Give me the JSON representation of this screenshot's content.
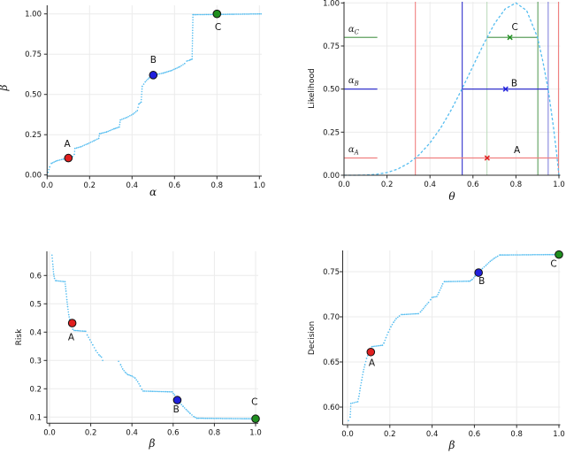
{
  "figure": {
    "background": "#ffffff",
    "colors": {
      "curve": "#55bdf0",
      "marker_red": "#e02020",
      "marker_blue": "#2020dd",
      "marker_green": "#1f8f1f",
      "line_red": "#f08080",
      "line_blue": "#3333cc",
      "line_blue_light": "#8585dd",
      "line_green": "#5ea05e",
      "line_green_pale": "#bfdcbf",
      "grid": "#ebebeb",
      "axis": "#2b2b2b",
      "text": "#111111"
    }
  },
  "chart_data": [
    {
      "id": "beta-vs-alpha",
      "type": "line",
      "xlabel": "α",
      "ylabel": "β",
      "xlim": [
        0,
        1.01
      ],
      "ylim": [
        0,
        1.05
      ],
      "xticks": {
        "values": [
          0,
          0.2,
          0.4,
          0.6,
          0.8,
          1.0
        ],
        "labels": [
          "0.0",
          "0.2",
          "0.4",
          "0.6",
          "0.8",
          "1.0"
        ]
      },
      "yticks": {
        "values": [
          0,
          0.25,
          0.5,
          0.75,
          1.0
        ],
        "labels": [
          "0.00",
          "0.25",
          "0.50",
          "0.75",
          "1.00"
        ]
      },
      "curve_style": "dots",
      "curve": [
        [
          0,
          0
        ],
        [
          0.012,
          0.05
        ],
        [
          0.02,
          0.072
        ],
        [
          0.045,
          0.088
        ],
        [
          0.075,
          0.098
        ],
        [
          0.1,
          0.105
        ],
        [
          0.12,
          0.115
        ],
        [
          0.128,
          0.128
        ],
        [
          0.131,
          0.165
        ],
        [
          0.16,
          0.176
        ],
        [
          0.19,
          0.193
        ],
        [
          0.22,
          0.212
        ],
        [
          0.243,
          0.227
        ],
        [
          0.247,
          0.256
        ],
        [
          0.28,
          0.267
        ],
        [
          0.315,
          0.286
        ],
        [
          0.34,
          0.298
        ],
        [
          0.345,
          0.342
        ],
        [
          0.375,
          0.357
        ],
        [
          0.405,
          0.378
        ],
        [
          0.425,
          0.4
        ],
        [
          0.432,
          0.44
        ],
        [
          0.443,
          0.452
        ],
        [
          0.448,
          0.55
        ],
        [
          0.462,
          0.578
        ],
        [
          0.48,
          0.602
        ],
        [
          0.5,
          0.62
        ],
        [
          0.545,
          0.632
        ],
        [
          0.585,
          0.648
        ],
        [
          0.625,
          0.672
        ],
        [
          0.648,
          0.692
        ],
        [
          0.658,
          0.707
        ],
        [
          0.672,
          0.713
        ],
        [
          0.683,
          0.72
        ],
        [
          0.687,
          0.995
        ],
        [
          1.008,
          1.0
        ]
      ],
      "points": [
        {
          "label": "A",
          "x": 0.1,
          "y": 0.105,
          "color": "#e02020",
          "label_pos": [
            0.095,
            0.175
          ]
        },
        {
          "label": "B",
          "x": 0.5,
          "y": 0.62,
          "color": "#2020dd",
          "label_pos": [
            0.5,
            0.695
          ]
        },
        {
          "label": "C",
          "x": 0.8,
          "y": 1.0,
          "color": "#1f8f1f",
          "label_pos": [
            0.805,
            0.9
          ]
        }
      ]
    },
    {
      "id": "likelihood-vs-theta",
      "type": "line",
      "xlabel": "θ",
      "ylabel": "Likelihood",
      "xlim": [
        0,
        1.0
      ],
      "ylim": [
        0,
        1.03
      ],
      "xticks": {
        "values": [
          0,
          0.2,
          0.4,
          0.6,
          0.8,
          1.0
        ],
        "labels": [
          "0.0",
          "0.2",
          "0.4",
          "0.6",
          "0.8",
          "1.0"
        ]
      },
      "yticks": {
        "values": [
          0,
          0.25,
          0.5,
          0.75,
          1.0
        ],
        "labels": [
          "0.00",
          "0.25",
          "0.50",
          "0.75",
          "1.00"
        ]
      },
      "curve_style": "dash",
      "curve": [
        [
          0,
          0
        ],
        [
          0.05,
          0.0001
        ],
        [
          0.1,
          0.0011
        ],
        [
          0.15,
          0.0053
        ],
        [
          0.2,
          0.0156
        ],
        [
          0.25,
          0.0358
        ],
        [
          0.3,
          0.0692
        ],
        [
          0.35,
          0.119
        ],
        [
          0.4,
          0.1875
        ],
        [
          0.45,
          0.2753
        ],
        [
          0.5,
          0.3815
        ],
        [
          0.55,
          0.5026
        ],
        [
          0.6,
          0.6328
        ],
        [
          0.65,
          0.7627
        ],
        [
          0.7,
          0.8793
        ],
        [
          0.75,
          0.9656
        ],
        [
          0.8,
          1.0
        ],
        [
          0.85,
          0.9558
        ],
        [
          0.9,
          0.8009
        ],
        [
          0.925,
          0.661
        ],
        [
          0.95,
          0.4972
        ],
        [
          0.975,
          0.2758
        ],
        [
          0.99,
          0.117
        ],
        [
          1.0,
          0
        ]
      ],
      "hlines": [
        {
          "y": 0.1,
          "color": "#f08080",
          "segments": [
            [
              0,
              0.155
            ],
            [
              0.332,
              0.998
            ]
          ],
          "label": {
            "base": "α",
            "sub": "A",
            "pos": [
              0.02,
              0.133
            ]
          }
        },
        {
          "y": 0.5,
          "color": "#3333cc",
          "segments": [
            [
              0,
              0.155
            ],
            [
              0.55,
              0.95
            ]
          ],
          "label": {
            "base": "α",
            "sub": "B",
            "pos": [
              0.02,
              0.533
            ]
          }
        },
        {
          "y": 0.8,
          "color": "#5ea05e",
          "segments": [
            [
              0,
              0.155
            ],
            [
              0.665,
              0.902
            ]
          ],
          "label": {
            "base": "α",
            "sub": "C",
            "pos": [
              0.02,
              0.833
            ]
          }
        }
      ],
      "vlines": [
        {
          "x": 0.332,
          "color": "#f08080"
        },
        {
          "x": 0.998,
          "color": "#f08080"
        },
        {
          "x": 0.55,
          "color": "#3333cc"
        },
        {
          "x": 0.95,
          "color": "#8585dd"
        },
        {
          "x": 0.902,
          "color": "#5ea05e"
        },
        {
          "x": 0.665,
          "color": "#bfdcbf"
        }
      ],
      "xmarkers": [
        {
          "label": "A",
          "x": 0.666,
          "y": 0.1,
          "color": "#e02020",
          "label_pos": [
            0.805,
            0.128
          ]
        },
        {
          "label": "B",
          "x": 0.752,
          "y": 0.5,
          "color": "#2020dd",
          "label_pos": [
            0.792,
            0.517
          ]
        },
        {
          "label": "C",
          "x": 0.772,
          "y": 0.8,
          "color": "#1f8f1f",
          "label_pos": [
            0.795,
            0.842
          ]
        }
      ]
    },
    {
      "id": "risk-vs-beta",
      "type": "line",
      "xlabel": "β",
      "ylabel": "Risk",
      "xlim": [
        0,
        1.01
      ],
      "ylim": [
        0.08,
        0.685
      ],
      "xticks": {
        "values": [
          0,
          0.2,
          0.4,
          0.6,
          0.8,
          1.0
        ],
        "labels": [
          "0.0",
          "0.2",
          "0.4",
          "0.6",
          "0.8",
          "1.0"
        ]
      },
      "yticks": {
        "values": [
          0.1,
          0.2,
          0.3,
          0.4,
          0.5,
          0.6
        ],
        "labels": [
          "0.1",
          "0.2",
          "0.3",
          "0.4",
          "0.5",
          "0.6"
        ]
      },
      "curve_style": "dots",
      "curve": [
        [
          0.012,
          0.672
        ],
        [
          0.016,
          0.64
        ],
        [
          0.02,
          0.605
        ],
        [
          0.024,
          0.59
        ],
        [
          0.03,
          0.582
        ],
        [
          0.075,
          0.578
        ],
        [
          0.08,
          0.545
        ],
        [
          0.084,
          0.515
        ],
        [
          0.088,
          0.49
        ],
        [
          0.093,
          0.462
        ],
        [
          0.1,
          0.437
        ],
        [
          0.108,
          0.422
        ],
        [
          0.113,
          0.41
        ],
        [
          0.12,
          0.406
        ],
        [
          0.175,
          0.403
        ],
        [
          0.183,
          0.39
        ],
        [
          0.196,
          0.373
        ],
        [
          0.21,
          0.355
        ],
        [
          0.225,
          0.335
        ],
        [
          0.24,
          0.32
        ],
        [
          0.252,
          0.312
        ],
        [
          0.258,
          0.3
        ],
        null,
        [
          0.335,
          0.297
        ],
        [
          0.345,
          0.285
        ],
        [
          0.355,
          0.27
        ],
        [
          0.368,
          0.258
        ],
        [
          0.38,
          0.25
        ],
        [
          0.4,
          0.245
        ],
        [
          0.415,
          0.238
        ],
        [
          0.428,
          0.225
        ],
        [
          0.44,
          0.21
        ],
        [
          0.448,
          0.198
        ],
        [
          0.455,
          0.192
        ],
        [
          0.595,
          0.189
        ],
        [
          0.607,
          0.178
        ],
        [
          0.62,
          0.162
        ],
        [
          0.633,
          0.15
        ],
        [
          0.648,
          0.138
        ],
        [
          0.663,
          0.127
        ],
        [
          0.682,
          0.113
        ],
        [
          0.7,
          0.102
        ],
        [
          0.715,
          0.096
        ],
        [
          1.005,
          0.094
        ]
      ],
      "points": [
        {
          "label": "A",
          "x": 0.11,
          "y": 0.432,
          "color": "#e02020",
          "label_pos": [
            0.105,
            0.372
          ]
        },
        {
          "label": "B",
          "x": 0.62,
          "y": 0.16,
          "color": "#2020dd",
          "label_pos": [
            0.615,
            0.117
          ]
        },
        {
          "label": "C",
          "x": 1.0,
          "y": 0.094,
          "color": "#1f8f1f",
          "label_pos": [
            0.995,
            0.143
          ]
        }
      ]
    },
    {
      "id": "decision-vs-beta",
      "type": "line",
      "xlabel": "β",
      "ylabel": "Decision",
      "xlim": [
        0,
        1.01
      ],
      "ylim": [
        0.582,
        0.778
      ],
      "xticks": {
        "values": [
          0,
          0.2,
          0.4,
          0.6,
          0.8,
          1.0
        ],
        "labels": [
          "0.0",
          "0.2",
          "0.4",
          "0.6",
          "0.8",
          "1.0"
        ]
      },
      "yticks": {
        "values": [
          0.6,
          0.65,
          0.7,
          0.75
        ],
        "labels": [
          "0.60",
          "0.65",
          "0.70",
          "0.75"
        ]
      },
      "curve_style": "dots",
      "curve": [
        [
          0.004,
          0.585
        ],
        [
          0.012,
          0.589
        ],
        [
          0.016,
          0.604
        ],
        [
          0.048,
          0.606
        ],
        [
          0.054,
          0.612
        ],
        [
          0.06,
          0.621
        ],
        [
          0.067,
          0.63
        ],
        [
          0.074,
          0.639
        ],
        [
          0.082,
          0.647
        ],
        [
          0.09,
          0.654
        ],
        [
          0.1,
          0.66
        ],
        [
          0.108,
          0.664
        ],
        [
          0.115,
          0.667
        ],
        [
          0.165,
          0.6685
        ],
        [
          0.172,
          0.671
        ],
        [
          0.182,
          0.677
        ],
        [
          0.193,
          0.683
        ],
        [
          0.205,
          0.689
        ],
        [
          0.218,
          0.694
        ],
        [
          0.23,
          0.698
        ],
        [
          0.245,
          0.701
        ],
        [
          0.255,
          0.7025
        ],
        [
          0.335,
          0.7035
        ],
        [
          0.345,
          0.7055
        ],
        [
          0.358,
          0.709
        ],
        [
          0.37,
          0.7125
        ],
        [
          0.383,
          0.716
        ],
        [
          0.393,
          0.719
        ],
        [
          0.4,
          0.7215
        ],
        [
          0.422,
          0.7225
        ],
        [
          0.432,
          0.727
        ],
        [
          0.442,
          0.732
        ],
        [
          0.45,
          0.7365
        ],
        [
          0.458,
          0.739
        ],
        [
          0.578,
          0.7395
        ],
        [
          0.59,
          0.7415
        ],
        [
          0.603,
          0.745
        ],
        [
          0.62,
          0.749
        ],
        [
          0.638,
          0.7535
        ],
        [
          0.655,
          0.757
        ],
        [
          0.675,
          0.7615
        ],
        [
          0.695,
          0.765
        ],
        [
          0.71,
          0.7672
        ],
        [
          0.72,
          0.7685
        ],
        [
          1.005,
          0.769
        ]
      ],
      "points": [
        {
          "label": "A",
          "x": 0.11,
          "y": 0.661,
          "color": "#e02020",
          "label_pos": [
            0.115,
            0.6455
          ]
        },
        {
          "label": "B",
          "x": 0.62,
          "y": 0.749,
          "color": "#2020dd",
          "label_pos": [
            0.635,
            0.7365
          ]
        },
        {
          "label": "C",
          "x": 1.0,
          "y": 0.769,
          "color": "#1f8f1f",
          "label_pos": [
            0.975,
            0.7555
          ]
        }
      ]
    }
  ]
}
